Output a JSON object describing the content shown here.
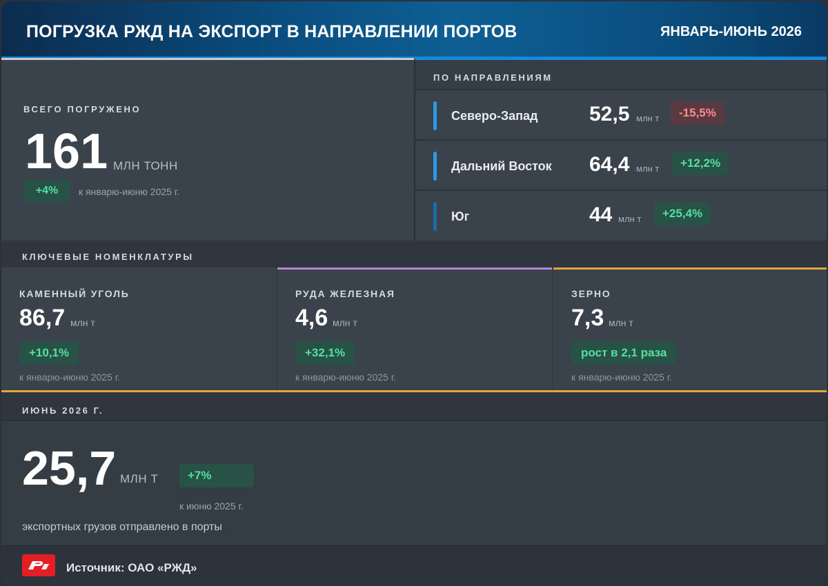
{
  "header": {
    "title": "ПОГРУЗКА РЖД НА ЭКСПОРТ В НАПРАВЛЕНИИ ПОРТОВ",
    "period": "ЯНВАРЬ-ИЮНЬ 2026"
  },
  "total": {
    "label": "ВСЕГО ПОГРУЖЕНО",
    "value": "161",
    "unit": "МЛН ТОНН",
    "change": "+4%",
    "note": "к январю-июню 2025 г."
  },
  "directions": {
    "label": "ПО НАПРАВЛЕНИЯМ",
    "items": [
      {
        "name": "Северо-Запад",
        "value": "52,5",
        "unit": "млн т",
        "change": "-15,5%",
        "trend": "down"
      },
      {
        "name": "Дальний Восток",
        "value": "64,4",
        "unit": "млн т",
        "change": "+12,2%",
        "trend": "up"
      },
      {
        "name": "Юг",
        "value": "44",
        "unit": "млн т",
        "change": "+25,4%",
        "trend": "up"
      }
    ]
  },
  "key_items": {
    "label": "КЛЮЧЕВЫЕ НОМЕНКЛАТУРЫ",
    "items": [
      {
        "name": "КАМЕННЫЙ УГОЛЬ",
        "value": "86,7",
        "unit": "млн т",
        "change": "+10,1%",
        "note": "к январю-июню 2025 г."
      },
      {
        "name": "РУДА ЖЕЛЕЗНАЯ",
        "value": "4,6",
        "unit": "млн т",
        "change": "+32,1%",
        "note": "к январю-июню 2025 г."
      },
      {
        "name": "ЗЕРНО",
        "value": "7,3",
        "unit": "млн т",
        "change": "рост в 2,1 раза",
        "note": "к январю-июню 2025 г."
      }
    ]
  },
  "june": {
    "label": "ИЮНЬ 2026 Г.",
    "value": "25,7",
    "unit": "МЛН Т",
    "change": "+7%",
    "note": "к июню 2025 г.",
    "description": "экспортных грузов отправлено в порты"
  },
  "footer": {
    "source": "Источник: ОАО «РЖД»"
  },
  "colors": {
    "accent_blue": "#1585d6",
    "positive": "#53e0a0",
    "negative": "#ff8b8b",
    "gold": "#e3a83a",
    "purple": "#b987d8",
    "logo_red": "#e31e24"
  }
}
